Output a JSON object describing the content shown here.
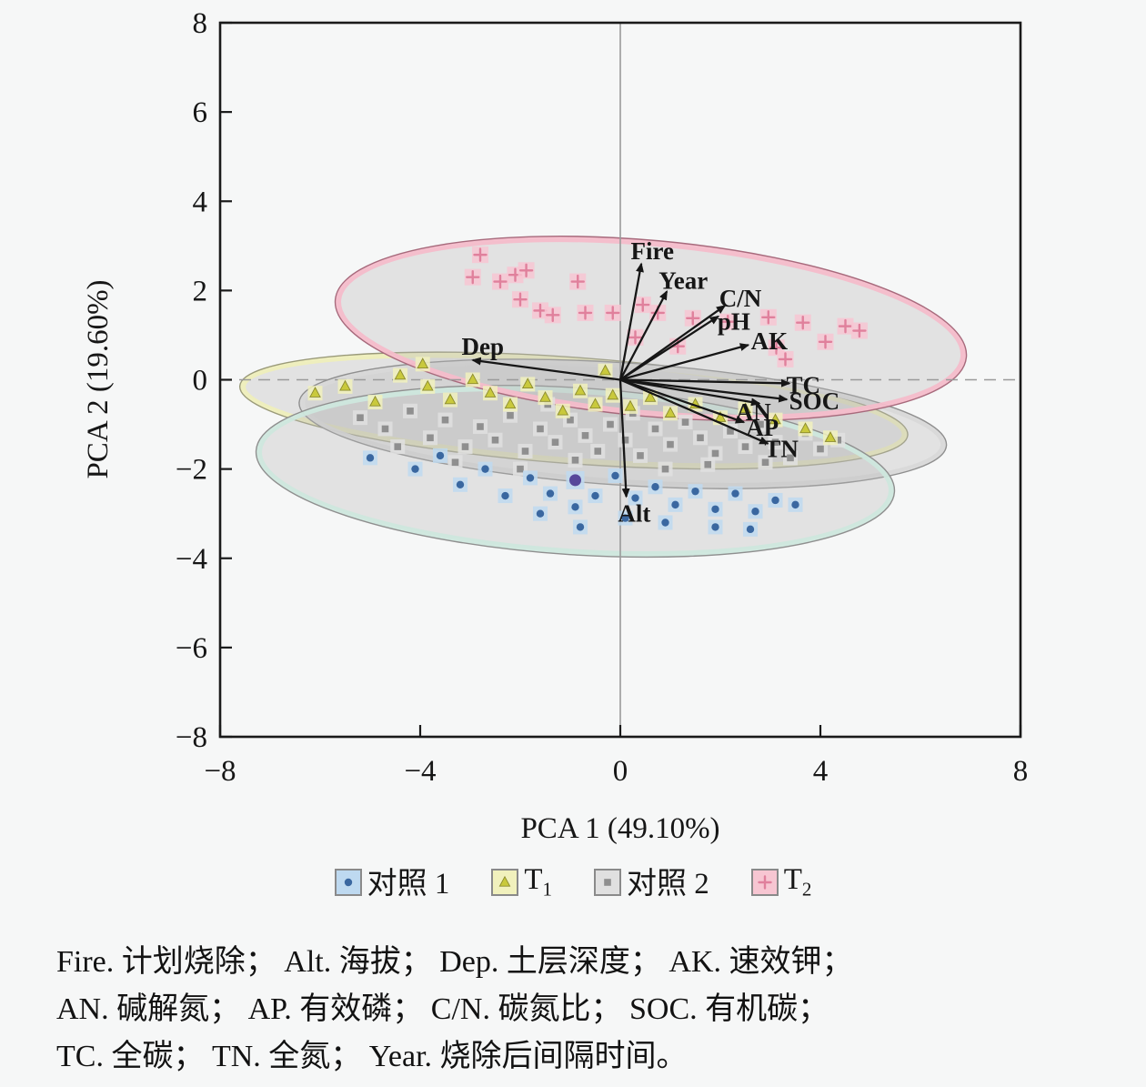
{
  "figure": {
    "background": "#f6f7f7"
  },
  "chart_data": {
    "type": "scatter",
    "title": "",
    "xlabel": "PCA 1 (49.10%)",
    "ylabel": "PCA 2 (19.60%)",
    "xlim": [
      -8,
      8
    ],
    "ylim": [
      -8,
      8
    ],
    "xtick_values": [
      -8,
      -4,
      0,
      4,
      8
    ],
    "xtick_labels": [
      "−8",
      "−4",
      "0",
      "4",
      "8"
    ],
    "ytick_values": [
      8,
      6,
      4,
      2,
      0,
      -2,
      -4,
      -6,
      -8
    ],
    "ytick_labels": [
      "8",
      "6",
      "4",
      "2",
      "0",
      "−2",
      "−4",
      "−6",
      "−8"
    ],
    "grid": {
      "vline_x": 0,
      "hline_y": 0,
      "line_color": "#9a9a9a"
    },
    "ellipse_draw_order": [
      1,
      2,
      0,
      3
    ],
    "point_draw_order": [
      2,
      1,
      0,
      3
    ],
    "loading_color": "#161616",
    "series": [
      {
        "id": "ctrl1",
        "name": "对照 1",
        "marker": "circle",
        "color": "#3a67a0",
        "halo": "#bed9f0",
        "ellipse": {
          "cx": -0.9,
          "cy": -2.05,
          "rx": 6.33,
          "ry": 1.8,
          "rot": 3.7,
          "rim": "#cde7dd",
          "outline": "#8f8f8f"
        },
        "points": [
          [
            -5.0,
            -1.75
          ],
          [
            -4.1,
            -2.0
          ],
          [
            -3.6,
            -1.7
          ],
          [
            -3.2,
            -2.35
          ],
          [
            -2.7,
            -2.0
          ],
          [
            -2.3,
            -2.6
          ],
          [
            -1.8,
            -2.2
          ],
          [
            -1.4,
            -2.55
          ],
          [
            -0.9,
            -2.85
          ],
          [
            -0.5,
            -2.6
          ],
          [
            -0.1,
            -2.15
          ],
          [
            0.3,
            -2.65
          ],
          [
            0.7,
            -2.4
          ],
          [
            1.1,
            -2.8
          ],
          [
            1.5,
            -2.5
          ],
          [
            1.9,
            -2.9
          ],
          [
            2.3,
            -2.55
          ],
          [
            2.7,
            -2.95
          ],
          [
            3.1,
            -2.7
          ],
          [
            3.5,
            -2.8
          ],
          [
            0.9,
            -3.2
          ],
          [
            0.1,
            -3.1
          ],
          [
            -0.8,
            -3.3
          ],
          [
            1.9,
            -3.3
          ],
          [
            -1.6,
            -3.0
          ],
          [
            2.6,
            -3.35
          ],
          [
            -0.9,
            -2.25,
            "big"
          ]
        ]
      },
      {
        "id": "t1",
        "name": "T",
        "sub": "1",
        "marker": "triangle",
        "color": "#c9c93c",
        "halo": "#f1f1bd",
        "ellipse": {
          "cx": -0.93,
          "cy": -0.69,
          "rx": 6.63,
          "ry": 1.12,
          "rot": 4.2,
          "rim": "#eeeebb",
          "outline": "#9a9a7a"
        },
        "points": [
          [
            -6.1,
            -0.3
          ],
          [
            -5.5,
            -0.15
          ],
          [
            -4.9,
            -0.5
          ],
          [
            -4.4,
            0.1
          ],
          [
            -3.95,
            0.35
          ],
          [
            -3.85,
            -0.15
          ],
          [
            -3.4,
            -0.45
          ],
          [
            -2.95,
            0.0
          ],
          [
            -2.6,
            -0.3
          ],
          [
            -2.2,
            -0.55
          ],
          [
            -1.85,
            -0.1
          ],
          [
            -1.5,
            -0.4
          ],
          [
            -1.15,
            -0.7
          ],
          [
            -0.8,
            -0.25
          ],
          [
            -0.5,
            -0.55
          ],
          [
            -0.15,
            -0.35
          ],
          [
            0.2,
            -0.6
          ],
          [
            0.6,
            -0.4
          ],
          [
            1.0,
            -0.75
          ],
          [
            1.5,
            -0.55
          ],
          [
            2.0,
            -0.85
          ],
          [
            2.5,
            -0.65
          ],
          [
            3.1,
            -0.9
          ],
          [
            3.7,
            -1.1
          ],
          [
            4.2,
            -1.3
          ],
          [
            -0.3,
            0.2
          ]
        ]
      },
      {
        "id": "ctrl2",
        "name": "对照 2",
        "marker": "square",
        "color": "#8f8f8f",
        "halo": "#e0e0e0",
        "ellipse": {
          "cx": 0.05,
          "cy": -0.99,
          "rx": 6.42,
          "ry": 1.3,
          "rot": 3.8,
          "rim": "#d8d8d8",
          "outline": "#8f8f8f"
        },
        "points": [
          [
            -5.2,
            -0.85
          ],
          [
            -4.7,
            -1.1
          ],
          [
            -4.2,
            -0.7
          ],
          [
            -3.8,
            -1.3
          ],
          [
            -3.5,
            -0.9
          ],
          [
            -3.1,
            -1.5
          ],
          [
            -2.8,
            -1.05
          ],
          [
            -2.5,
            -1.35
          ],
          [
            -2.2,
            -0.8
          ],
          [
            -1.9,
            -1.6
          ],
          [
            -1.6,
            -1.1
          ],
          [
            -1.3,
            -1.4
          ],
          [
            -1.0,
            -0.9
          ],
          [
            -0.7,
            -1.25
          ],
          [
            -0.45,
            -1.6
          ],
          [
            -0.2,
            -1.0
          ],
          [
            0.1,
            -1.35
          ],
          [
            0.4,
            -1.7
          ],
          [
            0.7,
            -1.1
          ],
          [
            1.0,
            -1.45
          ],
          [
            1.3,
            -0.95
          ],
          [
            1.6,
            -1.3
          ],
          [
            1.9,
            -1.65
          ],
          [
            2.2,
            -1.15
          ],
          [
            2.5,
            -1.5
          ],
          [
            2.8,
            -1.0
          ],
          [
            3.1,
            -1.4
          ],
          [
            3.4,
            -1.75
          ],
          [
            3.7,
            -1.2
          ],
          [
            4.0,
            -1.55
          ],
          [
            4.35,
            -1.35
          ],
          [
            0.25,
            -0.75
          ],
          [
            -0.9,
            -1.8
          ],
          [
            1.75,
            -1.9
          ],
          [
            2.9,
            -1.85
          ],
          [
            -2.0,
            -2.0
          ],
          [
            -3.3,
            -1.85
          ],
          [
            0.9,
            -2.0
          ],
          [
            -1.45,
            -0.55
          ],
          [
            -4.45,
            -1.5
          ]
        ]
      },
      {
        "id": "t2",
        "name": "T",
        "sub": "2",
        "marker": "plus",
        "color": "#e0809c",
        "halo": "#f7c6d2",
        "ellipse": {
          "cx": 0.61,
          "cy": 1.15,
          "rx": 6.27,
          "ry": 1.9,
          "rot": 5.2,
          "rim": "#f4bcca",
          "outline": "#a76a7c"
        },
        "points": [
          [
            -2.8,
            2.8
          ],
          [
            -2.95,
            2.3
          ],
          [
            -2.4,
            2.2
          ],
          [
            -2.1,
            2.35
          ],
          [
            -1.88,
            2.45
          ],
          [
            -2.0,
            1.8
          ],
          [
            -0.85,
            2.2
          ],
          [
            -1.6,
            1.55
          ],
          [
            -1.35,
            1.45
          ],
          [
            -0.7,
            1.5
          ],
          [
            -0.15,
            1.5
          ],
          [
            0.45,
            1.68
          ],
          [
            0.75,
            1.5
          ],
          [
            1.45,
            1.38
          ],
          [
            2.15,
            1.3
          ],
          [
            2.96,
            1.4
          ],
          [
            3.65,
            1.28
          ],
          [
            4.5,
            1.2
          ],
          [
            4.78,
            1.1
          ],
          [
            4.1,
            0.85
          ],
          [
            3.12,
            0.72
          ],
          [
            3.3,
            0.46
          ],
          [
            1.15,
            0.75
          ],
          [
            0.3,
            0.95
          ]
        ]
      }
    ],
    "loadings": [
      {
        "label": "Fire",
        "x": 0.42,
        "y": 2.6,
        "lx": 0.64,
        "ly": 2.88
      },
      {
        "label": "Year",
        "x": 0.93,
        "y": 1.98,
        "lx": 1.26,
        "ly": 2.22
      },
      {
        "label": "C/N",
        "x": 2.09,
        "y": 1.66,
        "lx": 2.4,
        "ly": 1.82
      },
      {
        "label": "pH",
        "x": 1.96,
        "y": 1.42,
        "lx": 2.27,
        "ly": 1.3
      },
      {
        "label": "AK",
        "x": 2.56,
        "y": 0.78,
        "lx": 2.98,
        "ly": 0.87
      },
      {
        "label": "TC",
        "x": 3.38,
        "y": -0.08,
        "lx": 3.66,
        "ly": -0.12
      },
      {
        "label": "SOC",
        "x": 3.33,
        "y": -0.44,
        "lx": 3.88,
        "ly": -0.48
      },
      {
        "label": "AN",
        "x": 2.78,
        "y": -0.53,
        "lx": 2.66,
        "ly": -0.72
      },
      {
        "label": "AP",
        "x": 2.47,
        "y": -0.95,
        "lx": 2.84,
        "ly": -1.07
      },
      {
        "label": "TN",
        "x": 2.95,
        "y": -1.43,
        "lx": 3.22,
        "ly": -1.55
      },
      {
        "label": "Dep",
        "x": -2.95,
        "y": 0.44,
        "lx": -2.75,
        "ly": 0.74
      },
      {
        "label": "Alt",
        "x": 0.12,
        "y": -2.62,
        "lx": 0.28,
        "ly": -3.0
      }
    ]
  },
  "legend": {
    "items": [
      {
        "text": "对照 1",
        "sub": ""
      },
      {
        "text": "T",
        "sub": "1"
      },
      {
        "text": "对照 2",
        "sub": ""
      },
      {
        "text": "T",
        "sub": "2"
      }
    ]
  },
  "caption": {
    "lines": [
      "Fire. 计划烧除； Alt. 海拔； Dep. 土层深度；  AK. 速效钾；",
      "AN. 碱解氮； AP. 有效磷； C/N. 碳氮比； SOC. 有机碳；",
      "TC. 全碳； TN. 全氮；  Year. 烧除后间隔时间。"
    ]
  }
}
